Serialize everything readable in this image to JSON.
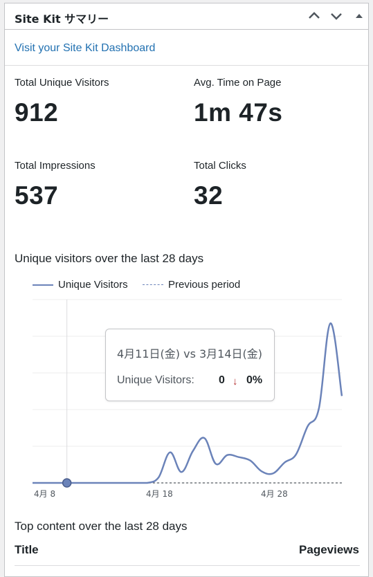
{
  "widget": {
    "title": "Site Kit サマリー",
    "dashboard_link": "Visit your Site Kit Dashboard"
  },
  "stats": {
    "unique_visitors": {
      "label": "Total Unique Visitors",
      "value": "912"
    },
    "avg_time": {
      "label": "Avg. Time on Page",
      "value": "1m 47s"
    },
    "impressions": {
      "label": "Total Impressions",
      "value": "537"
    },
    "clicks": {
      "label": "Total Clicks",
      "value": "32"
    }
  },
  "chart_section": {
    "title": "Unique visitors over the last 28 days"
  },
  "chart_data": {
    "type": "line",
    "legend_position": "top-left",
    "grid": true,
    "x_tick_labels": [
      "4月 8",
      "4月 18",
      "4月 28"
    ],
    "series": [
      {
        "name": "Unique Visitors",
        "color": "#6b83b9",
        "style": "solid",
        "values": [
          0,
          0,
          0,
          0,
          0,
          0,
          0,
          0,
          0,
          0,
          0,
          8,
          45,
          16,
          47,
          66,
          28,
          41,
          38,
          33,
          17,
          14,
          30,
          42,
          83,
          110,
          235,
          128
        ]
      },
      {
        "name": "Previous period",
        "color": "#6b83b9",
        "style": "dashed",
        "values": [
          0,
          0,
          0,
          0,
          0,
          0,
          0,
          0,
          0,
          0,
          0,
          0,
          0,
          0,
          0,
          0,
          0,
          0,
          0,
          0,
          0,
          0,
          0,
          0,
          0,
          0,
          0,
          0
        ]
      }
    ],
    "ylim": [
      0,
      270
    ],
    "highlight_index": 3
  },
  "tooltip": {
    "date": "4月11日(金) vs 3月14日(金)",
    "label": "Unique Visitors:",
    "value": "0",
    "change": "0%"
  },
  "top_content": {
    "title": "Top content over the last 28 days",
    "col_title": "Title",
    "col_pageviews": "Pageviews"
  }
}
